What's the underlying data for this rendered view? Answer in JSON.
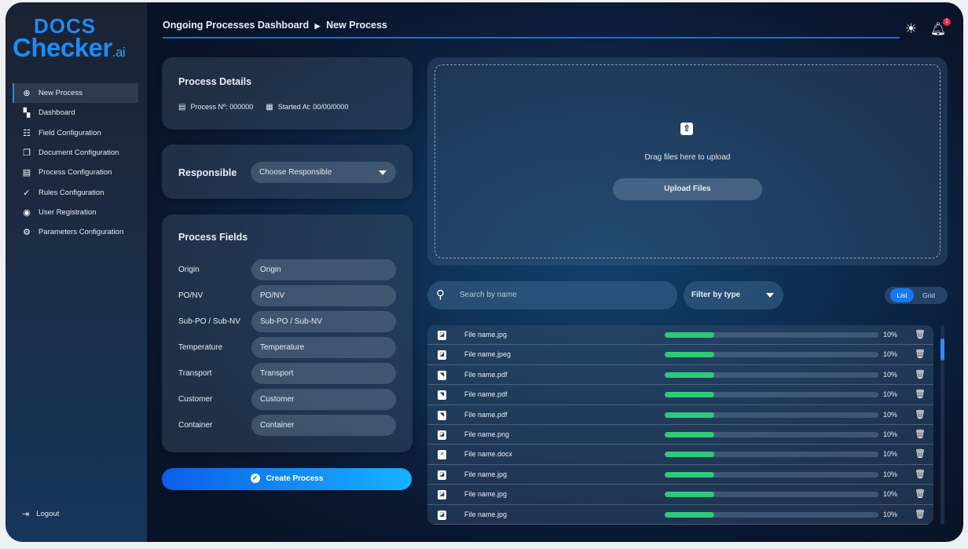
{
  "logo": {
    "line1": "DOCS",
    "line2": "Checker",
    "suffix": ".ai"
  },
  "sidebar": {
    "items": [
      {
        "label": "New Process",
        "icon": "plus-circle-icon",
        "active": true
      },
      {
        "label": "Dashboard",
        "icon": "dashboard-icon"
      },
      {
        "label": "Field Configuration",
        "icon": "checklist-icon"
      },
      {
        "label": "Document Configuration",
        "icon": "documents-icon"
      },
      {
        "label": "Process Configuration",
        "icon": "list-card-icon"
      },
      {
        "label": "Rules Configuration",
        "icon": "clipboard-check-icon"
      },
      {
        "label": "User Registration",
        "icon": "user-add-icon"
      },
      {
        "label": "Parameters Configuration",
        "icon": "gear-icon"
      }
    ],
    "logout": "Logout"
  },
  "header": {
    "breadcrumb": [
      "Ongoing Processes Dashboard",
      "New Process"
    ],
    "notification_count": "1"
  },
  "process_details": {
    "title": "Process Details",
    "process_no": "Process Nº: 000000",
    "started_at": "Started At: 00/00/0000"
  },
  "responsible": {
    "label": "Responsible",
    "placeholder": "Choose Responsible"
  },
  "process_fields": {
    "title": "Process Fields",
    "fields": [
      {
        "label": "Origin",
        "placeholder": "Origin"
      },
      {
        "label": "PO/NV",
        "placeholder": "PO/NV"
      },
      {
        "label": "Sub-PO / Sub-NV",
        "placeholder": "Sub-PO / Sub-NV"
      },
      {
        "label": "Temperature",
        "placeholder": "Temperature"
      },
      {
        "label": "Transport",
        "placeholder": "Transport"
      },
      {
        "label": "Customer",
        "placeholder": "Customer"
      },
      {
        "label": "Container",
        "placeholder": "Container"
      }
    ]
  },
  "create_button": "Create Process",
  "upload": {
    "drag_text": "Drag files here to upload",
    "button": "Upload Files"
  },
  "search": {
    "placeholder": "Search by name"
  },
  "filter": {
    "label": "Filter by type"
  },
  "view_toggle": {
    "list": "List",
    "grid": "Grid",
    "selected": "List"
  },
  "colors": {
    "accent": "#1778f2",
    "progress": "#2fc97a",
    "badge": "#e8264b"
  },
  "files": [
    {
      "name": "File name.jpg",
      "type": "image",
      "progress": "10%"
    },
    {
      "name": "File name.jpeg",
      "type": "image",
      "progress": "10%"
    },
    {
      "name": "File name.pdf",
      "type": "document",
      "progress": "10%"
    },
    {
      "name": "File name.pdf",
      "type": "document",
      "progress": "10%"
    },
    {
      "name": "File name.pdf",
      "type": "document",
      "progress": "10%"
    },
    {
      "name": "File name.png",
      "type": "image",
      "progress": "10%"
    },
    {
      "name": "File name.docx",
      "type": "text-document",
      "progress": "10%"
    },
    {
      "name": "File name.jpg",
      "type": "image",
      "progress": "10%"
    },
    {
      "name": "File name.jpg",
      "type": "image",
      "progress": "10%"
    },
    {
      "name": "File name.jpg",
      "type": "image",
      "progress": "10%"
    }
  ]
}
